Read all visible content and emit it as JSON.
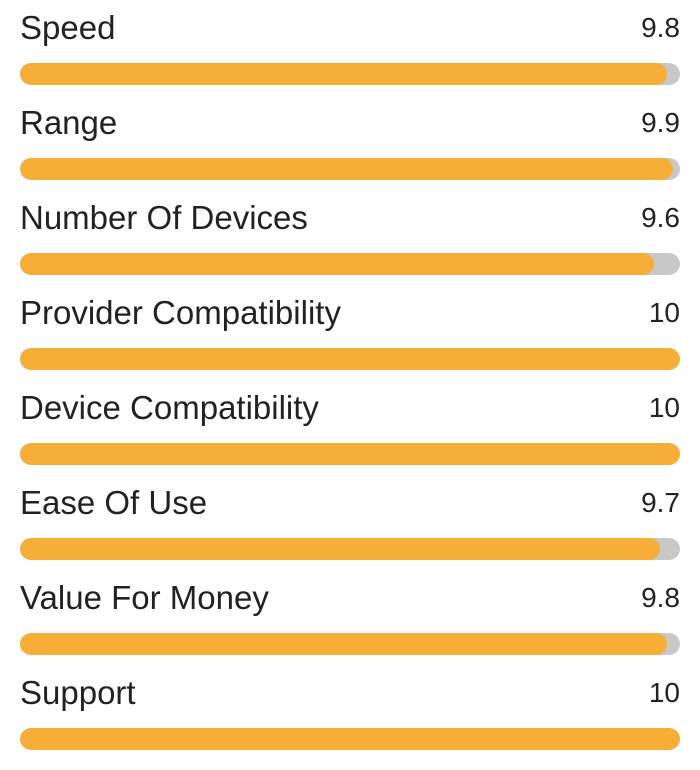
{
  "chart_data": {
    "type": "bar",
    "orientation": "horizontal",
    "xlim": [
      0,
      10
    ],
    "grid": false,
    "categories": [
      "Speed",
      "Range",
      "Number Of Devices",
      "Provider Compatibility",
      "Device Compatibility",
      "Ease Of Use",
      "Value For Money",
      "Support"
    ],
    "value_labels": [
      "9.8",
      "9.9",
      "9.6",
      "10",
      "10",
      "9.7",
      "9.8",
      "10"
    ],
    "values": [
      9.8,
      9.9,
      9.6,
      10,
      10,
      9.7,
      9.8,
      10
    ]
  },
  "colors": {
    "fill": "#f7ae37",
    "track": "#c8c8c8",
    "text": "#222222"
  }
}
